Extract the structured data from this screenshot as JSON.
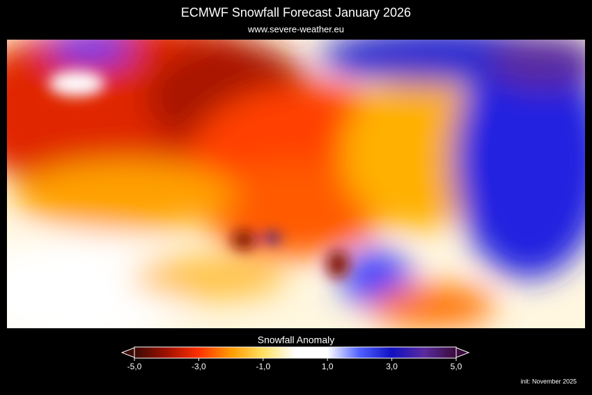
{
  "header": {
    "title": "ECMWF Snowfall Forecast   January 2026",
    "subtitle": "www.severe-weather.eu"
  },
  "legend": {
    "title": "Snowfall Anomaly",
    "range": [
      -5,
      5
    ],
    "ticks": [
      {
        "value": -5,
        "label": "-5,0"
      },
      {
        "value": -3,
        "label": "-3,0"
      },
      {
        "value": -1,
        "label": "-1,0"
      },
      {
        "value": 1,
        "label": "1,0"
      },
      {
        "value": 3,
        "label": "3,0"
      },
      {
        "value": 5,
        "label": "5,0"
      }
    ],
    "colors": [
      "#3a0a05",
      "#a01000",
      "#ff3000",
      "#ff9a00",
      "#ffe060",
      "#ffffff",
      "#ffffff",
      "#5060ff",
      "#1010c0",
      "#5a2aa0",
      "#3a0a3a"
    ]
  },
  "footer": {
    "init": "init: November 2025"
  }
}
